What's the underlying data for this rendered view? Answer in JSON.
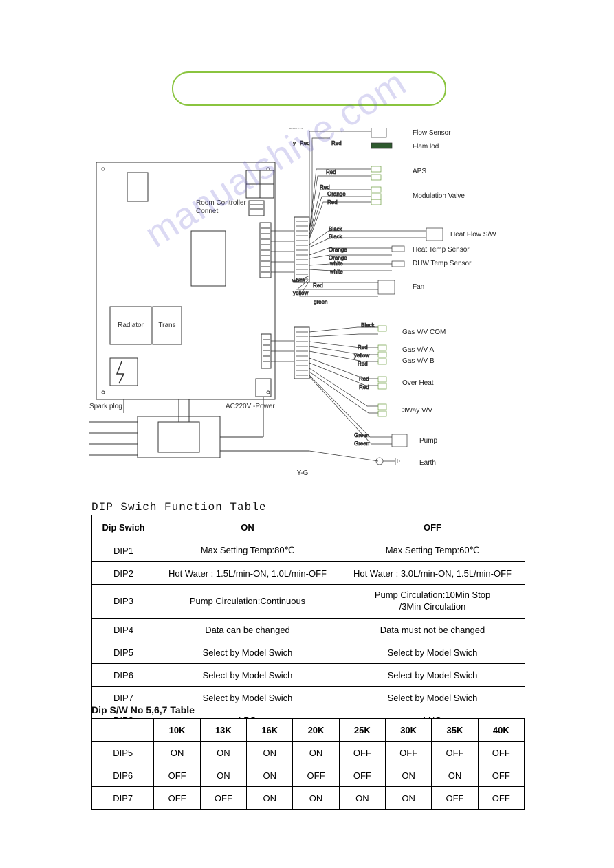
{
  "watermark_text": "manualshive.com",
  "diagram": {
    "board_labels": {
      "room_controller": "Room Controller",
      "room_controller_sub": "Connet",
      "radiator": "Radiator",
      "trans": "Trans",
      "spark_plog": "Spark plog",
      "power": "AC220V -Power",
      "yg": "Y-G"
    },
    "wire_colors": {
      "black": "Black",
      "red": "Red",
      "orange": "Orange",
      "white": "white",
      "yellow": "yellow",
      "green": "green",
      "Green": "Green",
      "y": "y"
    },
    "right_labels": [
      "Flow Sensor",
      "Flam lod",
      "APS",
      "Modulation Valve",
      "Heat Flow S/W",
      "Heat Temp Sensor",
      "DHW Temp Sensor",
      "Fan",
      "Gas V/V COM",
      "Gas V/V A",
      "Gas V/V B",
      "Over Heat",
      "3Way V/V",
      "Pump",
      "Earth"
    ]
  },
  "table1": {
    "title": "DIP Swich Function Table",
    "headers": [
      "Dip Swich",
      "ON",
      "OFF"
    ],
    "rows": [
      [
        "DIP1",
        "Max Setting Temp:80℃",
        "Max Setting Temp:60℃"
      ],
      [
        "DIP2",
        "Hot Water : 1.5L/min-ON, 1.0L/min-OFF",
        "Hot Water : 3.0L/min-ON, 1.5L/min-OFF"
      ],
      [
        "DIP3",
        "Pump Circulation:Continuous",
        "Pump Circulation:10Min Stop\n/3Min Circulation"
      ],
      [
        "DIP4",
        "Data can be changed",
        "Data must not be changed"
      ],
      [
        "DIP5",
        "Select by Model Swich",
        "Select by Model Swich"
      ],
      [
        "DIP6",
        "Select by Model Swich",
        "Select by Model Swich"
      ],
      [
        "DIP7",
        "Select by Model Swich",
        "Select by Model Swich"
      ],
      [
        "DIP8",
        "LPG",
        "LNG"
      ]
    ]
  },
  "table2": {
    "title": "Dip S/W No 5,6,7 Table",
    "headers": [
      "",
      "10K",
      "13K",
      "16K",
      "20K",
      "25K",
      "30K",
      "35K",
      "40K"
    ],
    "rows": [
      [
        "DIP5",
        "ON",
        "ON",
        "ON",
        "ON",
        "OFF",
        "OFF",
        "OFF",
        "OFF"
      ],
      [
        "DIP6",
        "OFF",
        "ON",
        "ON",
        "OFF",
        "OFF",
        "ON",
        "ON",
        "OFF"
      ],
      [
        "DIP7",
        "OFF",
        "OFF",
        "ON",
        "ON",
        "ON",
        "ON",
        "OFF",
        "OFF"
      ]
    ]
  },
  "colors": {
    "pill_border": "#8ac43f",
    "table_border": "#000000",
    "watermark": "rgba(90,80,200,0.22)"
  }
}
